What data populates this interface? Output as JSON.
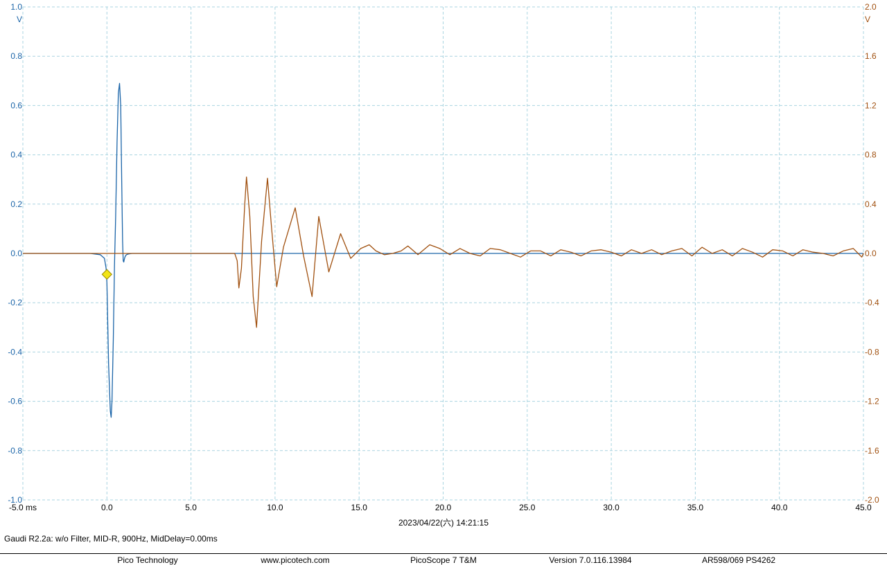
{
  "chart_data": {
    "type": "line",
    "x_unit": "ms",
    "xlim": [
      -5.0,
      45.0
    ],
    "x_ticks": [
      -5.0,
      0.0,
      5.0,
      10.0,
      15.0,
      20.0,
      25.0,
      30.0,
      35.0,
      40.0,
      45.0
    ],
    "x_tick_labels": [
      "-5.0 ms",
      "0.0",
      "5.0",
      "10.0",
      "15.0",
      "20.0",
      "25.0",
      "30.0",
      "35.0",
      "40.0",
      "45.0"
    ],
    "left_axis": {
      "unit": "V",
      "ylim": [
        -1.0,
        1.0
      ],
      "ticks": [
        1.0,
        0.8,
        0.6,
        0.4,
        0.2,
        0.0,
        -0.2,
        -0.4,
        -0.6,
        -0.8,
        -1.0
      ],
      "tick_labels": [
        "1.0",
        "0.8",
        "0.6",
        "0.4",
        "0.2",
        "0.0",
        "-0.2",
        "-0.4",
        "-0.6",
        "-0.8",
        "-1.0"
      ],
      "color": "#1a64a8"
    },
    "right_axis": {
      "unit": "V",
      "ylim": [
        -2.0,
        2.0
      ],
      "ticks": [
        2.0,
        1.6,
        1.2,
        0.8,
        0.4,
        0.0,
        -0.4,
        -0.8,
        -1.2,
        -1.6,
        -2.0
      ],
      "tick_labels": [
        "2.0",
        "1.6",
        "1.2",
        "0.8",
        "0.4",
        "0.0",
        "-0.4",
        "-0.8",
        "-1.2",
        "-1.6",
        "-2.0"
      ],
      "color": "#a0500f"
    },
    "grid": true,
    "trigger_marker": {
      "x": 0.0,
      "y": -0.085,
      "color": "#f2e415"
    },
    "series": [
      {
        "axis": "left",
        "color": "#1a64a8",
        "x": [
          -5.0,
          -1.0,
          -0.4,
          -0.15,
          -0.05,
          0.0,
          0.1,
          0.2,
          0.25,
          0.3,
          0.38,
          0.45,
          0.52,
          0.6,
          0.68,
          0.75,
          0.82,
          0.88,
          0.93,
          0.97,
          1.0,
          1.03,
          1.07,
          1.12,
          1.2,
          1.3,
          1.5,
          1.8,
          2.5,
          4.0,
          8.0,
          15.0,
          25.0,
          35.0,
          45.0
        ],
        "values": [
          0.0,
          0.0,
          -0.005,
          -0.02,
          -0.06,
          -0.12,
          -0.45,
          -0.64,
          -0.665,
          -0.6,
          -0.35,
          -0.05,
          0.15,
          0.45,
          0.65,
          0.69,
          0.6,
          0.3,
          0.05,
          -0.03,
          -0.035,
          -0.025,
          -0.015,
          -0.008,
          -0.004,
          -0.002,
          0.0,
          0.0,
          0.0,
          0.0,
          0.0,
          0.0,
          0.0,
          0.0,
          0.0
        ]
      },
      {
        "axis": "right",
        "color": "#a0500f",
        "x": [
          -5.0,
          7.0,
          7.6,
          7.75,
          7.85,
          8.0,
          8.2,
          8.3,
          8.5,
          8.7,
          8.9,
          9.2,
          9.55,
          9.8,
          10.1,
          10.5,
          11.2,
          11.7,
          12.2,
          12.6,
          13.2,
          13.9,
          14.5,
          15.1,
          15.6,
          16.0,
          16.5,
          17.0,
          17.5,
          17.9,
          18.5,
          19.2,
          19.8,
          20.4,
          21.0,
          21.6,
          22.2,
          22.8,
          23.4,
          24.0,
          24.6,
          25.2,
          25.8,
          26.4,
          27.0,
          27.6,
          28.2,
          28.8,
          29.4,
          30.0,
          30.6,
          31.2,
          31.8,
          32.4,
          33.0,
          33.6,
          34.2,
          34.8,
          35.4,
          36.0,
          36.6,
          37.2,
          37.8,
          38.4,
          39.0,
          39.6,
          40.2,
          40.8,
          41.4,
          42.0,
          42.6,
          43.2,
          43.8,
          44.4,
          44.9,
          45.0
        ],
        "values": [
          0.0,
          0.0,
          0.0,
          -0.06,
          -0.28,
          -0.12,
          0.4,
          0.62,
          0.3,
          -0.35,
          -0.6,
          0.1,
          0.61,
          0.2,
          -0.27,
          0.05,
          0.37,
          -0.02,
          -0.35,
          0.3,
          -0.15,
          0.16,
          -0.04,
          0.04,
          0.07,
          0.02,
          -0.01,
          0.0,
          0.02,
          0.06,
          -0.01,
          0.07,
          0.04,
          -0.01,
          0.04,
          0.0,
          -0.02,
          0.04,
          0.03,
          0.0,
          -0.03,
          0.02,
          0.02,
          -0.02,
          0.03,
          0.01,
          -0.02,
          0.02,
          0.03,
          0.01,
          -0.02,
          0.03,
          0.0,
          0.03,
          -0.01,
          0.02,
          0.04,
          -0.02,
          0.05,
          0.0,
          0.03,
          -0.02,
          0.04,
          0.01,
          -0.03,
          0.03,
          0.02,
          -0.02,
          0.03,
          0.01,
          0.0,
          -0.02,
          0.02,
          0.04,
          -0.03,
          0.0
        ]
      }
    ]
  },
  "timestamp": "2023/04/22(六) 14:21:15",
  "caption": "Gaudi R2.2a: w/o Filter, MID-R, 900Hz, MidDelay=0.00ms",
  "footer": {
    "company": "Pico Technology",
    "website": "www.picotech.com",
    "product": "PicoScope 7 T&M",
    "version": "Version 7.0.116.13984",
    "device": "AR598/069 PS4262"
  }
}
